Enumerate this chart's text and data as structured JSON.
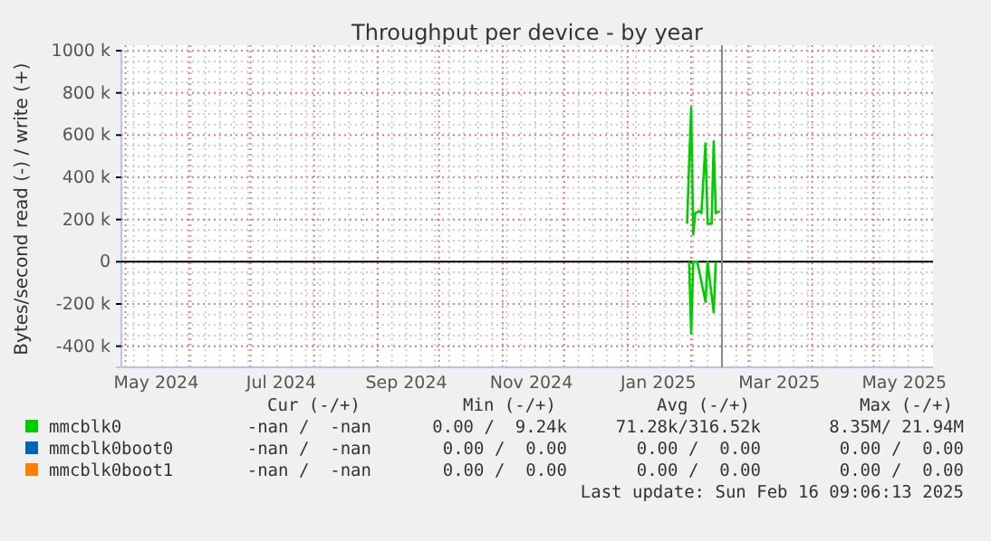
{
  "chart_data": {
    "type": "line",
    "title": "Throughput per device - by year",
    "ylabel": "Bytes/second read (-) / write (+)",
    "xlim": [
      "2024-04-29",
      "2025-05-30"
    ],
    "xticks": [
      {
        "value": "2024-05-16",
        "label": "May 2024"
      },
      {
        "value": "2024-07-16",
        "label": "Jul 2024"
      },
      {
        "value": "2024-09-15",
        "label": "Sep 2024"
      },
      {
        "value": "2024-11-15",
        "label": "Nov 2024"
      },
      {
        "value": "2025-01-16",
        "label": "Jan 2025"
      },
      {
        "value": "2025-03-16",
        "label": "Mar 2025"
      },
      {
        "value": "2025-05-16",
        "label": "May 2025"
      }
    ],
    "ylim": [
      -500000,
      1000000
    ],
    "yticks": [
      {
        "value": -400000,
        "label": "-400 k"
      },
      {
        "value": -200000,
        "label": "-200 k"
      },
      0,
      {
        "value": 200000,
        "label": "200 k"
      },
      {
        "value": 400000,
        "label": "400 k"
      },
      {
        "value": 600000,
        "label": "600 k"
      },
      {
        "value": 800000,
        "label": "800 k"
      },
      {
        "value": 1000000,
        "label": "1000 k"
      }
    ],
    "grid": true,
    "legend": "bottom",
    "series": [
      {
        "name": "mmcblk0",
        "color": "#00cc00",
        "x": [
          "2025-01-30",
          "2025-02-01",
          "2025-02-02",
          "2025-02-03",
          "2025-02-05",
          "2025-02-06",
          "2025-02-08",
          "2025-02-09",
          "2025-02-11",
          "2025-02-12",
          "2025-02-13",
          "2025-02-15"
        ],
        "values": [
          180000,
          730000,
          130000,
          230000,
          240000,
          230000,
          560000,
          180000,
          180000,
          570000,
          230000,
          240000
        ]
      },
      {
        "color": "#00cc00",
        "x": [
          "2025-01-31",
          "2025-02-01",
          "2025-02-02",
          "2025-02-04",
          "2025-02-08",
          "2025-02-09",
          "2025-02-12",
          "2025-02-13"
        ],
        "values": [
          0,
          -340000,
          0,
          0,
          -190000,
          0,
          -240000,
          0
        ]
      },
      {
        "name": "mmcblk0boot0",
        "color": "#0066b3"
      },
      {
        "name": "mmcblk0boot1",
        "color": "#ff8000"
      }
    ],
    "ref_lines": [
      {
        "axis": "y",
        "value": 0,
        "color": "#000000"
      },
      {
        "axis": "x",
        "value": "2025-02-16",
        "color": "#888888"
      }
    ],
    "annotations": [
      "Cur (-/+)",
      "Min (-/+)",
      "Avg (-/+)",
      "Max (-/+)",
      "-nan /  -nan",
      "0.00 /  9.24k",
      "71.28k/316.52k",
      "8.35M/ 21.94M",
      "-nan /  -nan",
      "0.00 /  0.00",
      "0.00 /  0.00",
      "0.00 /  0.00",
      "-nan /  -nan",
      "0.00 /  0.00",
      "0.00 /  0.00",
      "0.00 /  0.00",
      "Last update: Sun Feb 16 09:06:13 2025"
    ]
  }
}
